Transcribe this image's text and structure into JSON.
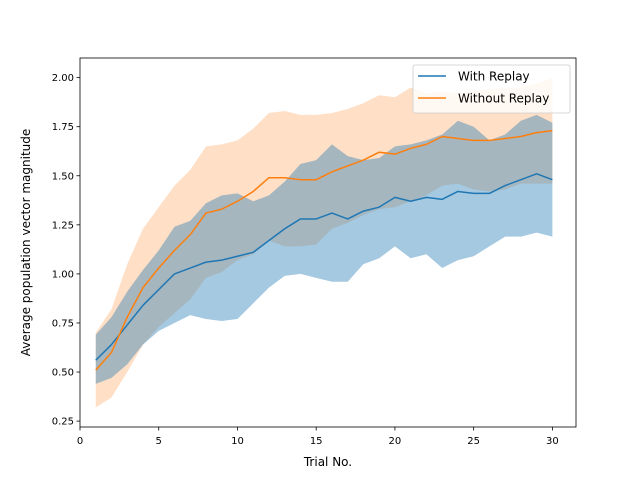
{
  "chart_data": {
    "type": "line",
    "title": "",
    "xlabel": "Trial No.",
    "ylabel": "Average population vector magnitude",
    "xlim": [
      0,
      31.5
    ],
    "ylim": [
      0.22,
      2.1
    ],
    "xticks": [
      0,
      5,
      10,
      15,
      20,
      25,
      30
    ],
    "yticks": [
      0.25,
      0.5,
      0.75,
      1.0,
      1.25,
      1.5,
      1.75,
      2.0
    ],
    "xtick_labels": [
      "0",
      "5",
      "10",
      "15",
      "20",
      "25",
      "30"
    ],
    "ytick_labels": [
      "0.25",
      "0.50",
      "0.75",
      "1.00",
      "1.25",
      "1.50",
      "1.75",
      "2.00"
    ],
    "grid": false,
    "legend_position": "top-right",
    "x": [
      1,
      2,
      3,
      4,
      5,
      6,
      7,
      8,
      9,
      10,
      11,
      12,
      13,
      14,
      15,
      16,
      17,
      18,
      19,
      20,
      21,
      22,
      23,
      24,
      25,
      26,
      27,
      28,
      29,
      30
    ],
    "series": [
      {
        "name": "With Replay",
        "color": "#1f77b4",
        "band_color": "#a6c8e2",
        "values": [
          0.56,
          0.64,
          0.74,
          0.84,
          0.92,
          1.0,
          1.03,
          1.06,
          1.07,
          1.09,
          1.11,
          1.17,
          1.23,
          1.28,
          1.28,
          1.31,
          1.28,
          1.32,
          1.34,
          1.39,
          1.37,
          1.39,
          1.38,
          1.42,
          1.41,
          1.41,
          1.45,
          1.48,
          1.51,
          1.48
        ],
        "lower": [
          0.44,
          0.47,
          0.54,
          0.64,
          0.71,
          0.75,
          0.79,
          0.77,
          0.76,
          0.77,
          0.85,
          0.93,
          0.99,
          1.0,
          0.98,
          0.96,
          0.96,
          1.05,
          1.08,
          1.14,
          1.08,
          1.1,
          1.03,
          1.07,
          1.09,
          1.14,
          1.19,
          1.19,
          1.21,
          1.19
        ],
        "upper": [
          0.69,
          0.78,
          0.91,
          1.02,
          1.12,
          1.24,
          1.27,
          1.36,
          1.4,
          1.41,
          1.37,
          1.4,
          1.47,
          1.56,
          1.58,
          1.66,
          1.6,
          1.58,
          1.59,
          1.65,
          1.66,
          1.68,
          1.71,
          1.78,
          1.75,
          1.68,
          1.71,
          1.78,
          1.81,
          1.77
        ]
      },
      {
        "name": "Without Replay",
        "color": "#ff7f0e",
        "band_color": "#ffdfc6",
        "values": [
          0.51,
          0.6,
          0.78,
          0.93,
          1.03,
          1.12,
          1.2,
          1.31,
          1.33,
          1.37,
          1.42,
          1.49,
          1.49,
          1.48,
          1.48,
          1.52,
          1.55,
          1.58,
          1.62,
          1.61,
          1.64,
          1.66,
          1.7,
          1.69,
          1.68,
          1.68,
          1.69,
          1.7,
          1.72,
          1.73
        ],
        "lower": [
          0.32,
          0.37,
          0.5,
          0.64,
          0.73,
          0.8,
          0.87,
          0.98,
          1.01,
          1.07,
          1.1,
          1.17,
          1.14,
          1.14,
          1.15,
          1.23,
          1.26,
          1.3,
          1.33,
          1.34,
          1.37,
          1.4,
          1.45,
          1.46,
          1.43,
          1.42,
          1.43,
          1.46,
          1.46,
          1.46
        ],
        "upper": [
          0.7,
          0.82,
          1.05,
          1.23,
          1.34,
          1.45,
          1.53,
          1.65,
          1.66,
          1.68,
          1.74,
          1.82,
          1.83,
          1.81,
          1.81,
          1.82,
          1.84,
          1.87,
          1.91,
          1.9,
          1.95,
          1.92,
          1.93,
          1.92,
          1.93,
          1.94,
          1.95,
          1.95,
          1.97,
          2.0
        ]
      }
    ]
  }
}
